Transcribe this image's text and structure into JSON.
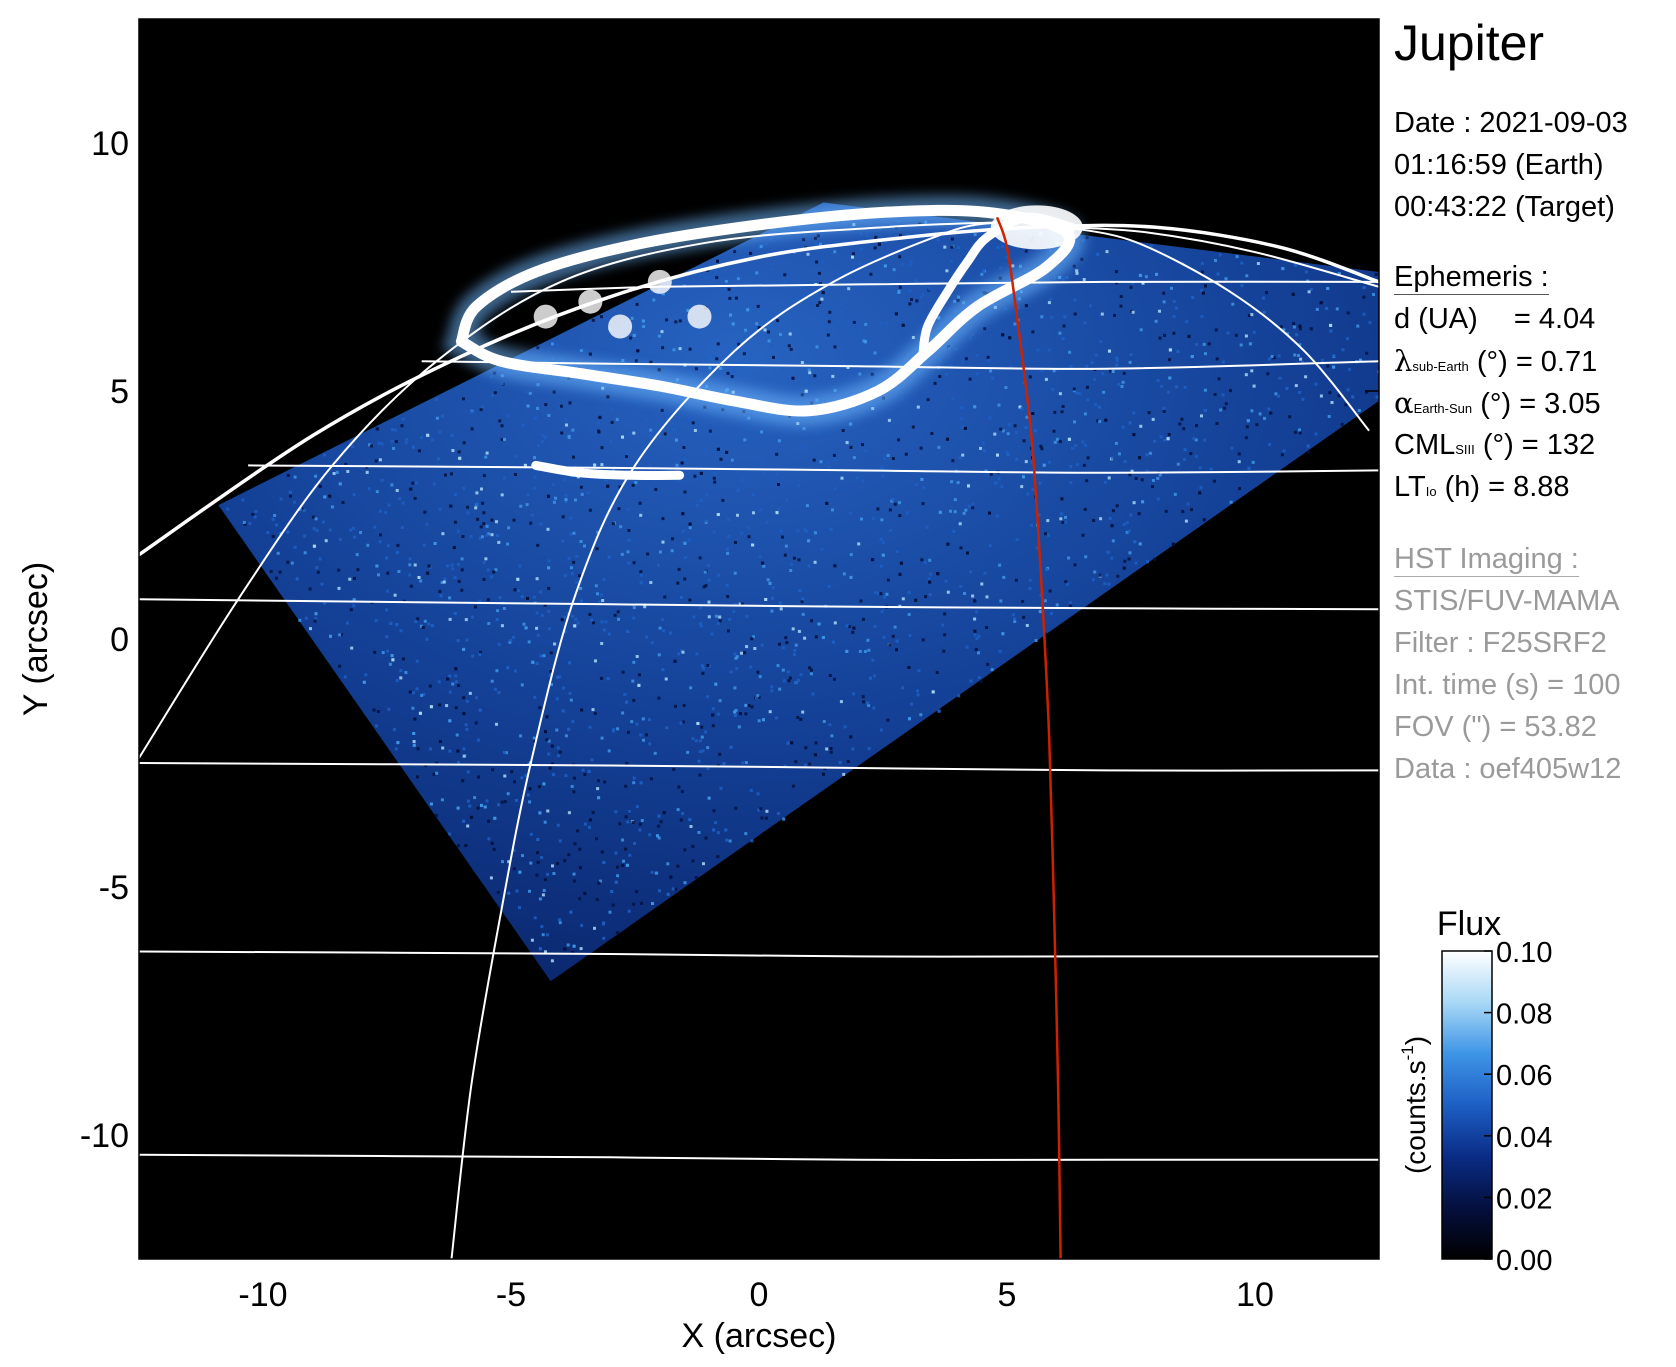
{
  "title": "Jupiter",
  "observation": {
    "date_line": "Date : 2021-09-03",
    "earth_time": "01:16:59 (Earth)",
    "target_time": "00:43:22 (Target)"
  },
  "ephemeris": {
    "header": "Ephemeris :",
    "d_label": "d (UA)",
    "d_value": "= 4.04",
    "lat_symbol": "λ",
    "lat_sub": "sub-Earth",
    "lat_unit": "(°)",
    "lat_value": "= 0.71",
    "phase_symbol": "α",
    "phase_sub": "Earth-Sun",
    "phase_unit": "(°)",
    "phase_value": "= 3.05",
    "cml_label": "CML",
    "cml_sub": "SIII",
    "cml_unit": "(°)",
    "cml_value": "= 132",
    "lt_label": "LT",
    "lt_sub": "Io",
    "lt_unit": "(h)",
    "lt_value": "= 8.88"
  },
  "imaging": {
    "header": "HST Imaging :",
    "instrument": "STIS/FUV-MAMA",
    "filter": "Filter : F25SRF2",
    "int_time": "Int. time (s) = 100",
    "fov": "FOV (\") = 53.82",
    "data": "Data : oef405w12"
  },
  "colorbar": {
    "title": "Flux",
    "unit_label": "(counts.s",
    "unit_exp": "-1",
    "unit_close": ")",
    "min": 0.0,
    "max": 0.1,
    "ticks": [
      "0.00",
      "0.02",
      "0.04",
      "0.06",
      "0.08",
      "0.10"
    ],
    "stops": [
      "#000000",
      "#04103e",
      "#0a2c86",
      "#1d5fc4",
      "#3e95e6",
      "#a9d8f6",
      "#ffffff"
    ]
  },
  "chart_data": {
    "type": "heatmap",
    "xlabel": "X (arcsec)",
    "ylabel": "Y (arcsec)",
    "xlim": [
      -12.5,
      12.5
    ],
    "ylim": [
      -12.5,
      12.5
    ],
    "xticks": [
      "-10",
      "-5",
      "0",
      "5",
      "10"
    ],
    "yticks": [
      "-10",
      "-5",
      "0",
      "5",
      "10"
    ],
    "background_color": "#000000",
    "grid_color": "#ffffff",
    "footprint_color": "#cc2200",
    "image_footprint": [
      [
        -4.2,
        -6.9
      ],
      [
        -10.9,
        2.7
      ],
      [
        1.3,
        8.8
      ],
      [
        12.5,
        7.4
      ],
      [
        12.5,
        4.8
      ]
    ],
    "main_oval": [
      [
        -6.0,
        6.0
      ],
      [
        -5.7,
        6.7
      ],
      [
        -4.5,
        7.4
      ],
      [
        -2.5,
        7.95
      ],
      [
        0.0,
        8.35
      ],
      [
        2.5,
        8.6
      ],
      [
        4.6,
        8.6
      ],
      [
        6.2,
        8.2
      ],
      [
        5.8,
        7.5
      ],
      [
        4.4,
        6.7
      ],
      [
        3.4,
        5.8
      ],
      [
        2.4,
        5.0
      ],
      [
        1.0,
        4.6
      ],
      [
        -0.5,
        4.8
      ],
      [
        -2.0,
        5.1
      ],
      [
        -3.6,
        5.35
      ],
      [
        -5.2,
        5.6
      ],
      [
        -6.0,
        6.0
      ]
    ],
    "inner_arc": [
      [
        3.3,
        5.7
      ],
      [
        3.4,
        6.3
      ],
      [
        3.8,
        7.0
      ],
      [
        4.2,
        7.6
      ],
      [
        4.6,
        8.1
      ],
      [
        5.4,
        8.5
      ],
      [
        6.3,
        8.3
      ]
    ],
    "secondary_arc": [
      [
        -4.5,
        3.5
      ],
      [
        -3.6,
        3.35
      ],
      [
        -2.6,
        3.3
      ],
      [
        -1.6,
        3.3
      ]
    ],
    "polar_spots": [
      [
        -1.2,
        6.5
      ],
      [
        -2.8,
        6.3
      ],
      [
        -3.4,
        6.8
      ],
      [
        -2.0,
        7.2
      ],
      [
        -4.3,
        6.5
      ]
    ],
    "limb": [
      [
        -12.5,
        1.7
      ],
      [
        -9.0,
        4.1
      ],
      [
        -6.0,
        5.7
      ],
      [
        -3.0,
        6.9
      ],
      [
        0.0,
        7.7
      ],
      [
        3.0,
        8.1
      ],
      [
        5.5,
        8.3
      ],
      [
        8.0,
        8.3
      ],
      [
        10.5,
        7.9
      ],
      [
        12.5,
        7.2
      ]
    ],
    "latitude_lines": [
      [
        [
          -6.8,
          5.6
        ],
        [
          -3.0,
          5.55
        ],
        [
          2.0,
          5.5
        ],
        [
          7.0,
          5.45
        ],
        [
          12.5,
          5.6
        ]
      ],
      [
        [
          -10.3,
          3.5
        ],
        [
          -3.0,
          3.45
        ],
        [
          2.0,
          3.4
        ],
        [
          7.0,
          3.35
        ],
        [
          12.5,
          3.4
        ]
      ],
      [
        [
          -12.5,
          0.8
        ],
        [
          -3.0,
          0.7
        ],
        [
          2.0,
          0.65
        ],
        [
          7.0,
          0.62
        ],
        [
          12.5,
          0.6
        ]
      ],
      [
        [
          -12.5,
          -2.5
        ],
        [
          -3.0,
          -2.55
        ],
        [
          2.0,
          -2.6
        ],
        [
          7.0,
          -2.65
        ],
        [
          12.5,
          -2.65
        ]
      ],
      [
        [
          -12.5,
          -6.3
        ],
        [
          -3.0,
          -6.35
        ],
        [
          2.0,
          -6.4
        ],
        [
          7.0,
          -6.4
        ],
        [
          12.5,
          -6.4
        ]
      ],
      [
        [
          -12.5,
          -10.4
        ],
        [
          -3.0,
          -10.45
        ],
        [
          2.0,
          -10.5
        ],
        [
          7.0,
          -10.5
        ],
        [
          12.5,
          -10.5
        ]
      ],
      [
        [
          -5.0,
          7.0
        ],
        [
          -2.0,
          7.1
        ],
        [
          2.0,
          7.15
        ],
        [
          7.0,
          7.2
        ],
        [
          12.5,
          7.2
        ]
      ]
    ],
    "longitude_lines": [
      [
        [
          -12.5,
          -2.4
        ],
        [
          -10.5,
          0.8
        ],
        [
          -8.6,
          3.5
        ],
        [
          -6.5,
          5.6
        ],
        [
          -4.0,
          7.2
        ],
        [
          -1.0,
          8.0
        ],
        [
          2.5,
          8.3
        ],
        [
          4.8,
          8.4
        ]
      ],
      [
        [
          -6.2,
          -12.5
        ],
        [
          -5.8,
          -9.0
        ],
        [
          -5.2,
          -5.5
        ],
        [
          -4.6,
          -2.5
        ],
        [
          -3.7,
          0.9
        ],
        [
          -2.5,
          3.5
        ],
        [
          -0.5,
          5.8
        ],
        [
          1.5,
          7.2
        ],
        [
          3.8,
          8.2
        ],
        [
          4.8,
          8.4
        ]
      ],
      [
        [
          6.2,
          8.3
        ],
        [
          7.6,
          8.0
        ],
        [
          9.5,
          7.0
        ],
        [
          11.0,
          5.8
        ],
        [
          12.3,
          4.2
        ]
      ],
      [
        [
          6.2,
          8.3
        ],
        [
          7.8,
          8.2
        ],
        [
          10.0,
          7.8
        ],
        [
          12.5,
          7.1
        ]
      ]
    ],
    "io_footprint": [
      [
        4.8,
        8.5
      ],
      [
        5.0,
        7.9
      ],
      [
        5.2,
        6.5
      ],
      [
        5.5,
        4.0
      ],
      [
        5.7,
        1.0
      ],
      [
        5.85,
        -2.0
      ],
      [
        5.95,
        -5.5
      ],
      [
        6.03,
        -9.0
      ],
      [
        6.08,
        -12.5
      ]
    ]
  }
}
